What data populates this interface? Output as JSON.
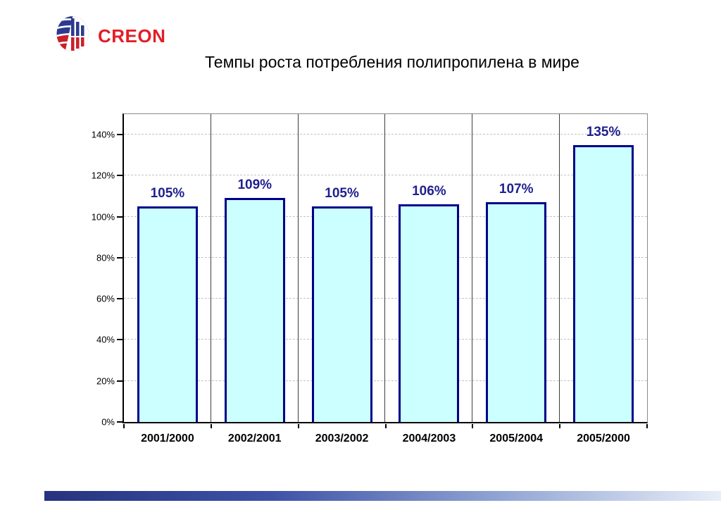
{
  "logo": {
    "text": "CREON",
    "text_color": "#E21F26",
    "globe_blue": "#2B3A8F",
    "globe_red": "#C9202A"
  },
  "header": {
    "title": "Темпы роста потребления полипропилена в мире"
  },
  "chart_data": {
    "type": "bar",
    "title": "Темпы роста потребления полипропилена в мире",
    "categories": [
      "2001/2000",
      "2002/2001",
      "2003/2002",
      "2004/2003",
      "2005/2004",
      "2005/2000"
    ],
    "values": [
      105,
      109,
      105,
      106,
      107,
      135
    ],
    "value_labels": [
      "105%",
      "109%",
      "105%",
      "106%",
      "107%",
      "135%"
    ],
    "ylim": [
      0,
      150
    ],
    "yticks": [
      {
        "value": 0,
        "label": "0%"
      },
      {
        "value": 20,
        "label": "20%"
      },
      {
        "value": 40,
        "label": "40%"
      },
      {
        "value": 60,
        "label": "60%"
      },
      {
        "value": 80,
        "label": "80%"
      },
      {
        "value": 100,
        "label": "100%"
      },
      {
        "value": 120,
        "label": "120%"
      },
      {
        "value": 140,
        "label": "140%"
      }
    ],
    "grid": "horizontal-dashed",
    "legend": "none",
    "bar_fill": "#CCFFFF",
    "bar_border": "#00008B",
    "value_label_color": "#1F1F8F"
  },
  "footer": {
    "gradient": [
      "#26337F",
      "#3D52A6",
      "#8FA3D3",
      "#E8EEF8"
    ]
  }
}
